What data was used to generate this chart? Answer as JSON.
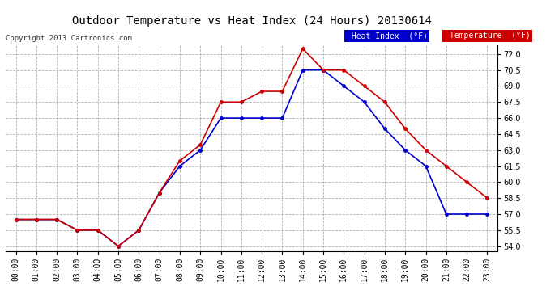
{
  "title": "Outdoor Temperature vs Heat Index (24 Hours) 20130614",
  "copyright": "Copyright 2013 Cartronics.com",
  "x_labels": [
    "00:00",
    "01:00",
    "02:00",
    "03:00",
    "04:00",
    "05:00",
    "06:00",
    "07:00",
    "08:00",
    "09:00",
    "10:00",
    "11:00",
    "12:00",
    "13:00",
    "14:00",
    "15:00",
    "16:00",
    "17:00",
    "18:00",
    "19:00",
    "20:00",
    "21:00",
    "22:00",
    "23:00"
  ],
  "heat_index": [
    56.5,
    56.5,
    56.5,
    55.5,
    55.5,
    54.0,
    55.5,
    59.0,
    61.5,
    63.0,
    66.0,
    66.0,
    66.0,
    66.0,
    70.5,
    70.5,
    69.0,
    67.5,
    65.0,
    63.0,
    61.5,
    57.0,
    57.0,
    57.0
  ],
  "temperature": [
    56.5,
    56.5,
    56.5,
    55.5,
    55.5,
    54.0,
    55.5,
    59.0,
    62.0,
    63.5,
    67.5,
    67.5,
    68.5,
    68.5,
    72.5,
    70.5,
    70.5,
    69.0,
    67.5,
    65.0,
    63.0,
    61.5,
    60.0,
    58.5
  ],
  "heat_index_color": "#0000cc",
  "temperature_color": "#cc0000",
  "background_color": "#ffffff",
  "grid_color": "#aaaaaa",
  "ylim_min": 54.0,
  "ylim_max": 72.0,
  "ytick_interval": 1.5,
  "legend_hi_bg": "#0000cc",
  "legend_temp_bg": "#cc0000"
}
